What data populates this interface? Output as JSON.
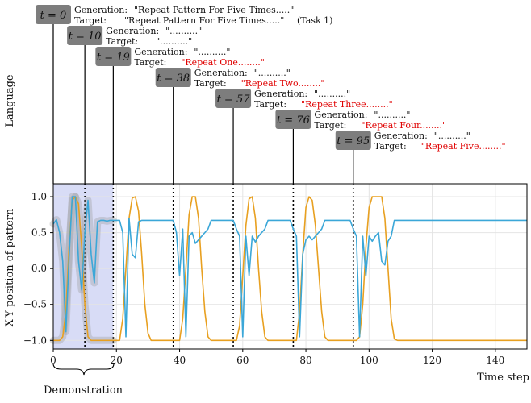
{
  "language_label": "Language",
  "demonstration_label": "Demonstration",
  "colors": {
    "orange": "#e8a020",
    "blue": "#3ba7d8",
    "demo_band": "#d8dcf6",
    "badge": "#7d7d7d"
  },
  "annotations": [
    {
      "t_label": "t = 0",
      "step": 0,
      "gen_label": "Generation:",
      "gen_text": "\"Repeat Pattern For Five Times.....\"",
      "target_label": "Target:",
      "target_text": "\"Repeat Pattern For Five Times.....\"",
      "target_suffix": "(Task 1)",
      "target_red": false
    },
    {
      "t_label": "t = 10",
      "step": 10,
      "gen_label": "Generation:",
      "gen_text": "\"..........\"",
      "target_label": "Target:",
      "target_text": "\"..........\"",
      "target_suffix": "",
      "target_red": false
    },
    {
      "t_label": "t = 19",
      "step": 19,
      "gen_label": "Generation:",
      "gen_text": "\"..........\"",
      "target_label": "Target:",
      "target_text": "\"Repeat One........\"",
      "target_suffix": "",
      "target_red": true
    },
    {
      "t_label": "t = 38",
      "step": 38,
      "gen_label": "Generation:",
      "gen_text": "\"..........\"",
      "target_label": "Target:",
      "target_text": "\"Repeat Two........\"",
      "target_suffix": "",
      "target_red": true
    },
    {
      "t_label": "t = 57",
      "step": 57,
      "gen_label": "Generation:",
      "gen_text": "\"..........\"",
      "target_label": "Target:",
      "target_text": "\"Repeat Three........\"",
      "target_suffix": "",
      "target_red": true
    },
    {
      "t_label": "t = 76",
      "step": 76,
      "gen_label": "Generation:",
      "gen_text": "\"..........\"",
      "target_label": "Target:",
      "target_text": "\"Repeat Four........\"",
      "target_suffix": "",
      "target_red": true
    },
    {
      "t_label": "t = 95",
      "step": 95,
      "gen_label": "Generation:",
      "gen_text": "\"..........\"",
      "target_label": "Target:",
      "target_text": "\"Repeat Five........\"",
      "target_suffix": "",
      "target_red": true
    }
  ],
  "chart_data": {
    "type": "line",
    "title": "",
    "xlabel": "Time step",
    "ylabel": "X-Y position of pattern",
    "xlim": [
      0,
      150
    ],
    "ylim": [
      -1.12,
      1.18
    ],
    "xticks": [
      0,
      20,
      40,
      60,
      80,
      100,
      120,
      140
    ],
    "yticks": [
      -1.0,
      -0.5,
      0.0,
      0.5,
      1.0
    ],
    "ytick_labels": [
      "−1.0",
      "−0.5",
      "0.0",
      "0.5",
      "1.0"
    ],
    "grid": true,
    "demonstration_range": [
      0,
      19
    ],
    "vertical_dotted_lines": [
      10,
      19,
      38,
      57,
      76,
      95
    ],
    "series": [
      {
        "name": "orange",
        "color": "#e8a020",
        "x": [
          0,
          1,
          2,
          3,
          4,
          5,
          6,
          7,
          8,
          9,
          10,
          11,
          12,
          13,
          14,
          15,
          16,
          17,
          18,
          19,
          20,
          21,
          22,
          23,
          24,
          25,
          26,
          27,
          28,
          29,
          30,
          31,
          32,
          33,
          34,
          35,
          36,
          37,
          38,
          39,
          40,
          41,
          42,
          43,
          44,
          45,
          46,
          47,
          48,
          49,
          50,
          51,
          52,
          53,
          54,
          55,
          56,
          57,
          58,
          59,
          60,
          61,
          62,
          63,
          64,
          65,
          66,
          67,
          68,
          69,
          70,
          71,
          72,
          73,
          74,
          75,
          76,
          77,
          78,
          79,
          80,
          81,
          82,
          83,
          84,
          85,
          86,
          87,
          88,
          89,
          90,
          91,
          92,
          93,
          94,
          95,
          96,
          97,
          98,
          99,
          100,
          101,
          102,
          103,
          104,
          105,
          106,
          107,
          108,
          109,
          110,
          115,
          120,
          130,
          140,
          150
        ],
        "y": [
          -1.0,
          -1.0,
          -1.0,
          -0.95,
          -0.6,
          0.3,
          0.95,
          1.0,
          0.9,
          0.3,
          -0.5,
          -0.95,
          -1.0,
          -1.0,
          -1.0,
          -1.0,
          -1.0,
          -1.0,
          -1.0,
          -1.0,
          -1.0,
          -1.0,
          -0.7,
          0.0,
          0.7,
          0.98,
          1.0,
          0.8,
          0.2,
          -0.5,
          -0.9,
          -1.0,
          -1.0,
          -1.0,
          -1.0,
          -1.0,
          -1.0,
          -1.0,
          -1.0,
          -1.0,
          -1.0,
          -0.7,
          0.0,
          0.75,
          1.0,
          1.0,
          0.7,
          0.0,
          -0.6,
          -0.95,
          -1.0,
          -1.0,
          -1.0,
          -1.0,
          -1.0,
          -1.0,
          -1.0,
          -1.0,
          -1.0,
          -0.8,
          -0.1,
          0.6,
          0.97,
          1.0,
          0.7,
          0.0,
          -0.6,
          -0.95,
          -1.0,
          -1.0,
          -1.0,
          -1.0,
          -1.0,
          -1.0,
          -1.0,
          -1.0,
          -1.0,
          -1.0,
          -0.6,
          0.2,
          0.85,
          1.0,
          0.95,
          0.6,
          0.0,
          -0.6,
          -0.95,
          -1.0,
          -1.0,
          -1.0,
          -1.0,
          -1.0,
          -1.0,
          -1.0,
          -1.0,
          -1.0,
          -1.0,
          -0.95,
          -0.5,
          0.3,
          0.85,
          1.0,
          1.0,
          1.0,
          1.0,
          0.7,
          0.0,
          -0.7,
          -0.98,
          -1.0,
          -1.0,
          -1.0,
          -1.0,
          -1.0,
          -1.0,
          -1.0
        ]
      },
      {
        "name": "blue",
        "color": "#3ba7d8",
        "x": [
          0,
          1,
          2,
          3,
          4,
          5,
          6,
          7,
          8,
          9,
          10,
          11,
          12,
          13,
          14,
          15,
          16,
          17,
          18,
          19,
          20,
          21,
          22,
          23,
          24,
          25,
          26,
          27,
          28,
          29,
          30,
          31,
          32,
          33,
          34,
          35,
          36,
          37,
          38,
          39,
          40,
          41,
          42,
          43,
          44,
          45,
          46,
          47,
          48,
          49,
          50,
          51,
          52,
          53,
          54,
          55,
          56,
          57,
          58,
          59,
          60,
          61,
          62,
          63,
          64,
          65,
          66,
          67,
          68,
          69,
          70,
          71,
          72,
          73,
          74,
          75,
          76,
          77,
          78,
          79,
          80,
          81,
          82,
          83,
          84,
          85,
          86,
          87,
          88,
          89,
          90,
          91,
          92,
          93,
          94,
          95,
          96,
          97,
          98,
          99,
          100,
          101,
          102,
          103,
          104,
          105,
          106,
          107,
          108,
          109,
          110,
          115,
          120,
          130,
          140,
          150
        ],
        "y": [
          0.62,
          0.68,
          0.5,
          0.1,
          -0.88,
          0.15,
          1.0,
          1.0,
          0.1,
          -0.3,
          0.5,
          0.95,
          0.2,
          -0.2,
          0.65,
          0.67,
          0.67,
          0.66,
          0.67,
          0.67,
          0.67,
          0.67,
          0.5,
          -0.95,
          0.7,
          0.2,
          0.15,
          0.65,
          0.67,
          0.67,
          0.67,
          0.67,
          0.67,
          0.67,
          0.67,
          0.67,
          0.67,
          0.67,
          0.67,
          0.5,
          -0.1,
          0.55,
          -0.95,
          0.45,
          0.5,
          0.35,
          0.4,
          0.45,
          0.5,
          0.55,
          0.67,
          0.67,
          0.67,
          0.67,
          0.67,
          0.67,
          0.67,
          0.67,
          0.55,
          0.45,
          -0.95,
          0.45,
          -0.1,
          0.45,
          0.37,
          0.45,
          0.5,
          0.55,
          0.67,
          0.67,
          0.67,
          0.67,
          0.67,
          0.67,
          0.67,
          0.67,
          0.55,
          0.45,
          -0.95,
          0.2,
          0.4,
          0.45,
          0.4,
          0.45,
          0.5,
          0.55,
          0.67,
          0.67,
          0.67,
          0.67,
          0.67,
          0.67,
          0.67,
          0.67,
          0.67,
          0.55,
          0.45,
          -0.95,
          0.45,
          -0.1,
          0.45,
          0.38,
          0.45,
          0.5,
          0.1,
          0.05,
          0.38,
          0.45,
          0.67,
          0.67,
          0.67,
          0.67,
          0.67,
          0.67,
          0.67,
          0.67
        ]
      }
    ]
  }
}
